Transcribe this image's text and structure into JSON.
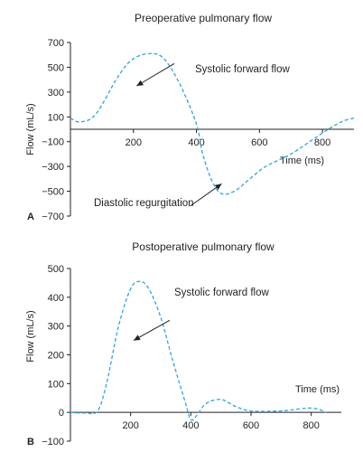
{
  "colors": {
    "curve": "#2aa7df",
    "ink": "#231f20"
  },
  "chart_data": [
    {
      "type": "line",
      "panel_label": "A",
      "title": "Preoperative pulmonary flow",
      "xlabel": "Time (ms)",
      "ylabel": "Flow (mL/s)",
      "xlim": [
        0,
        900
      ],
      "ylim": [
        -700,
        700
      ],
      "xticks": [
        200,
        400,
        600,
        800
      ],
      "yticks": [
        700,
        500,
        300,
        100,
        -100,
        -300,
        -500,
        -700
      ],
      "ytick_labels": [
        "700",
        "500",
        "300",
        "100",
        "−100",
        "−300",
        "−500",
        "−700"
      ],
      "grid": false,
      "series": [
        {
          "x": [
            0,
            30,
            80,
            150,
            200,
            260,
            300,
            350,
            400,
            420,
            450,
            480,
            520,
            560,
            620,
            700,
            800,
            860,
            900
          ],
          "y": [
            90,
            60,
            120,
            420,
            570,
            610,
            560,
            350,
            40,
            -200,
            -420,
            -520,
            -500,
            -420,
            -300,
            -200,
            -30,
            60,
            90
          ]
        }
      ],
      "annotations": [
        {
          "text": "Systolic forward flow",
          "x": 330,
          "y": 530,
          "arrow_to": [
            210,
            350
          ]
        },
        {
          "text": "Diastolic regurgitation",
          "x": 380,
          "y": -620,
          "arrow_to": [
            480,
            -440
          ]
        }
      ]
    },
    {
      "type": "line",
      "panel_label": "B",
      "title": "Postoperative pulmonary flow",
      "xlabel": "Time (ms)",
      "ylabel": "Flow (mL/s)",
      "xlim": [
        0,
        900
      ],
      "ylim": [
        -100,
        500
      ],
      "xticks": [
        200,
        400,
        600,
        800
      ],
      "yticks": [
        500,
        400,
        300,
        200,
        100,
        0,
        -100
      ],
      "ytick_labels": [
        "500",
        "400",
        "300",
        "100",
        "−100"
      ],
      "ytick_labels_full": [
        "500",
        "400",
        "300",
        "200",
        "100",
        "0",
        "−100"
      ],
      "grid": false,
      "series": [
        {
          "x": [
            0,
            50,
            90,
            120,
            160,
            200,
            230,
            260,
            300,
            340,
            380,
            400,
            420,
            450,
            500,
            550,
            600,
            700,
            800,
            850
          ],
          "y": [
            0,
            -2,
            5,
            100,
            300,
            430,
            455,
            430,
            330,
            180,
            40,
            -25,
            -10,
            30,
            45,
            20,
            5,
            5,
            15,
            0
          ]
        }
      ],
      "annotations": [
        {
          "text": "Systolic forward flow",
          "x": 330,
          "y": 320,
          "arrow_to": [
            210,
            250
          ]
        }
      ]
    }
  ],
  "texts": {
    "a_title": "Preoperative pulmonary flow",
    "a_ylabel": "Flow (mL/s)",
    "a_xlabel": "Time (ms)",
    "a_panel": "A",
    "a_ann1": "Systolic forward flow",
    "a_ann2": "Diastolic regurgitation",
    "b_title": "Postoperative pulmonary flow",
    "b_ylabel": "Flow (mL/s)",
    "b_xlabel": "Time (ms)",
    "b_panel": "B",
    "b_ann1": "Systolic forward flow"
  }
}
